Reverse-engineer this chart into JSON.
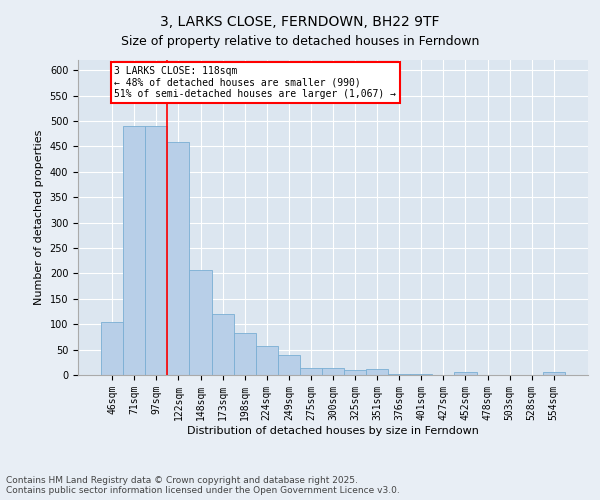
{
  "title": "3, LARKS CLOSE, FERNDOWN, BH22 9TF",
  "subtitle": "Size of property relative to detached houses in Ferndown",
  "xlabel": "Distribution of detached houses by size in Ferndown",
  "ylabel": "Number of detached properties",
  "footer": "Contains HM Land Registry data © Crown copyright and database right 2025.\nContains public sector information licensed under the Open Government Licence v3.0.",
  "categories": [
    "46sqm",
    "71sqm",
    "97sqm",
    "122sqm",
    "148sqm",
    "173sqm",
    "198sqm",
    "224sqm",
    "249sqm",
    "275sqm",
    "300sqm",
    "325sqm",
    "351sqm",
    "376sqm",
    "401sqm",
    "427sqm",
    "452sqm",
    "478sqm",
    "503sqm",
    "528sqm",
    "554sqm"
  ],
  "values": [
    105,
    490,
    490,
    458,
    207,
    121,
    82,
    57,
    39,
    14,
    14,
    10,
    12,
    2,
    2,
    0,
    5,
    0,
    0,
    0,
    5
  ],
  "bar_color": "#b8cfe8",
  "bar_edge_color": "#7aaed4",
  "vline_x": 2.5,
  "vline_color": "red",
  "annotation_text": "3 LARKS CLOSE: 118sqm\n← 48% of detached houses are smaller (990)\n51% of semi-detached houses are larger (1,067) →",
  "annotation_box_color": "white",
  "annotation_box_edge_color": "red",
  "ylim": [
    0,
    620
  ],
  "yticks": [
    0,
    50,
    100,
    150,
    200,
    250,
    300,
    350,
    400,
    450,
    500,
    550,
    600
  ],
  "background_color": "#e8eef5",
  "plot_background_color": "#dce6f0",
  "title_fontsize": 10,
  "subtitle_fontsize": 9,
  "tick_fontsize": 7,
  "label_fontsize": 8,
  "footer_fontsize": 6.5
}
